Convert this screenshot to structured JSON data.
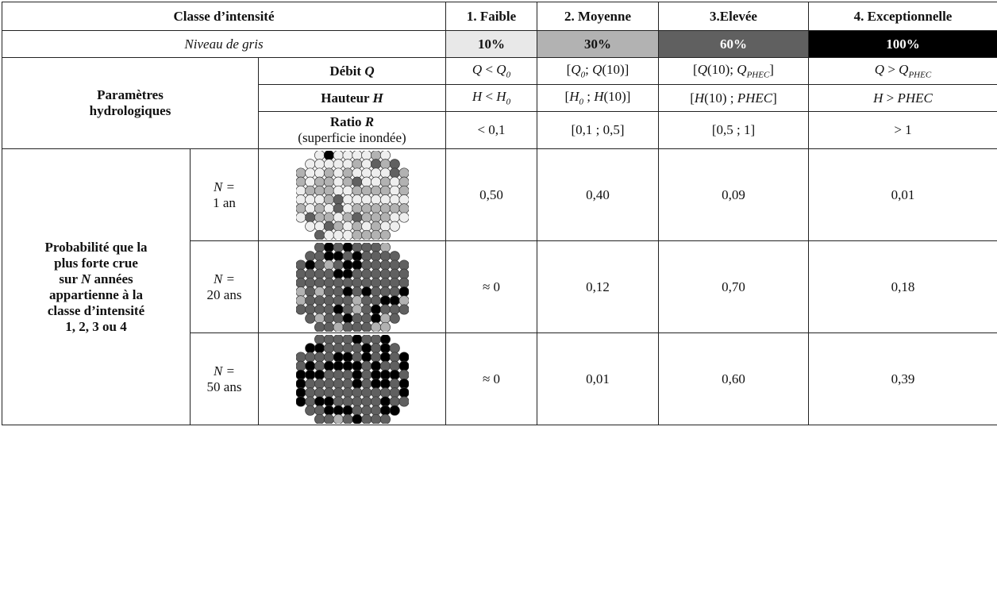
{
  "header": {
    "class_label": "Classe d’intensité",
    "classes": [
      "1. Faible",
      "2. Moyenne",
      "3.Elevée",
      "4. Exceptionnelle"
    ]
  },
  "grey": {
    "label": "Niveau de gris",
    "levels": [
      "10%",
      "30%",
      "60%",
      "100%"
    ],
    "colors": [
      "#e8e8e8",
      "#b2b2b2",
      "#606060",
      "#000000"
    ]
  },
  "params": {
    "group_label_1": "Paramètres",
    "group_label_2": "hydrologiques",
    "debit_label": "Débit",
    "debit_symbol": "Q",
    "hauteur_label": "Hauteur",
    "hauteur_symbol": "H",
    "ratio_label": "Ratio",
    "ratio_symbol": "R",
    "ratio_note": "(superficie inondée)",
    "ratio_values": [
      "< 0,1",
      "[0,1 ; 0,5]",
      "[0,5 ; 1]",
      "> 1"
    ]
  },
  "probability": {
    "label_lines": [
      "Probabilité que la",
      "plus forte crue",
      "années",
      "appartienne à la",
      "classe d’intensité",
      "1, 2, 3 ou 4"
    ],
    "label_sur": "sur",
    "label_N": "N",
    "rows": [
      {
        "n_prefix": "N =",
        "n_value": "1 an",
        "values": [
          "0,50",
          "0,40",
          "0,09",
          "0,01"
        ],
        "pattern": [
          0.5,
          0.4,
          0.09,
          0.01
        ]
      },
      {
        "n_prefix": "N =",
        "n_value": "20 ans",
        "values": [
          "≈ 0",
          "0,12",
          "0,70",
          "0,18"
        ],
        "pattern": [
          0.0,
          0.12,
          0.7,
          0.18
        ]
      },
      {
        "n_prefix": "N =",
        "n_value": "50 ans",
        "values": [
          "≈ 0",
          "0,01",
          "0,60",
          "0,39"
        ],
        "pattern": [
          0.0,
          0.01,
          0.6,
          0.39
        ]
      }
    ]
  }
}
